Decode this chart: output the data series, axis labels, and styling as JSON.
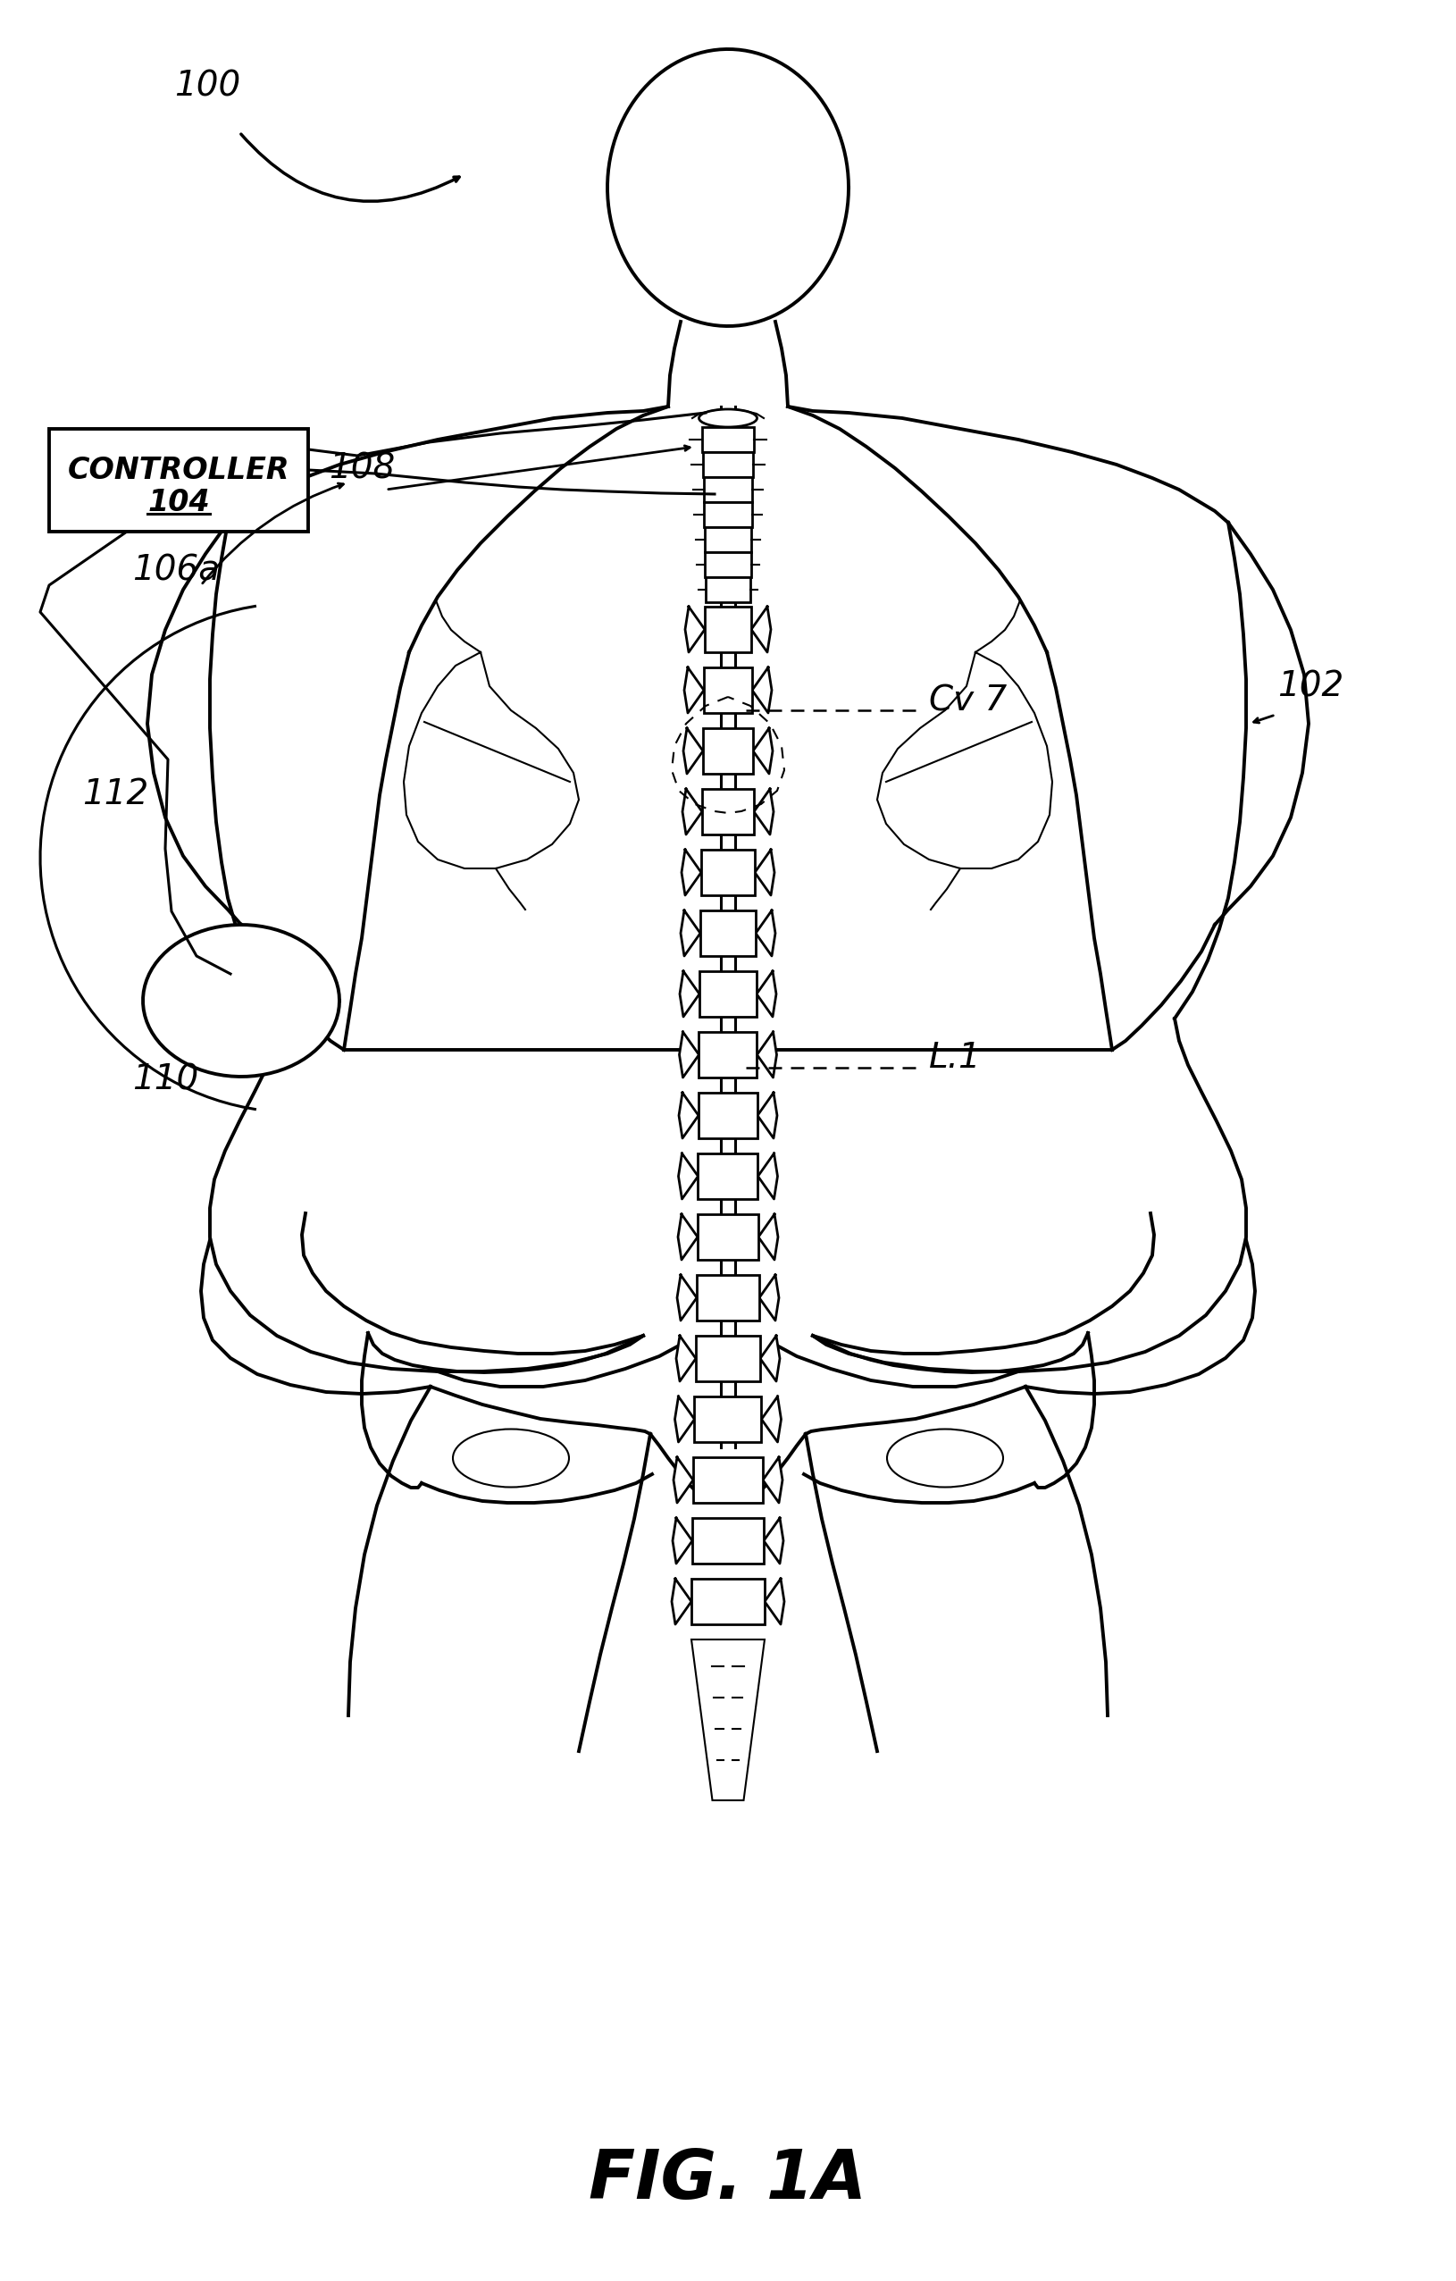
{
  "background_color": "#ffffff",
  "line_color": "#000000",
  "fig_label": "FIG. 1A",
  "controller_text_line1": "CONTROLLER",
  "controller_text_line2": "104",
  "lw_body": 2.8,
  "lw_fine": 1.5,
  "lw_lead": 2.2,
  "lw_spine": 2.0
}
